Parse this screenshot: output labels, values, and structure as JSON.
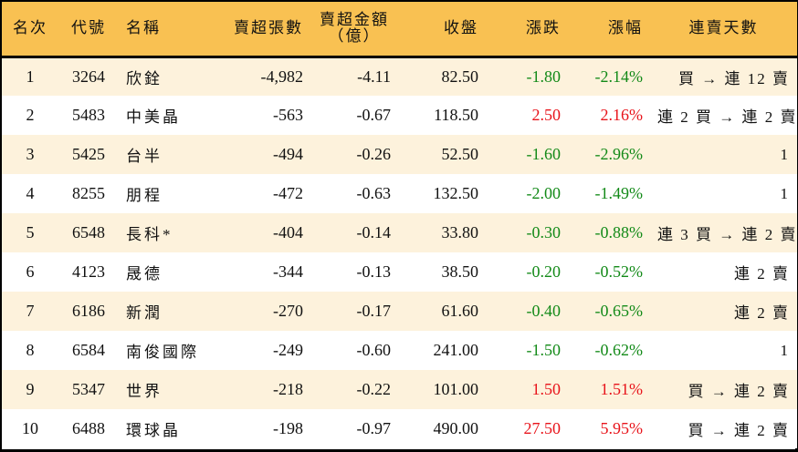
{
  "table": {
    "headers": {
      "rank": "名次",
      "code": "代號",
      "name": "名稱",
      "sell_volume": "賣超張數",
      "sell_amount_line1": "賣超金額",
      "sell_amount_line2": "（億）",
      "close": "收盤",
      "change": "漲跌",
      "change_pct": "漲幅",
      "streak": "連賣天數"
    },
    "colors": {
      "header_bg": "#F9C152",
      "row_odd_bg": "#FDF2DC",
      "row_even_bg": "#FFFFFF",
      "up": "#E8141B",
      "down": "#138A18"
    },
    "rows": [
      {
        "rank": "1",
        "code": "3264",
        "name": "欣銓",
        "sell_volume": "-4,982",
        "sell_amount": "-4.11",
        "close": "82.50",
        "change": "-1.80",
        "change_pct": "-2.14%",
        "direction": "down",
        "streak": "買 → 連 12 賣"
      },
      {
        "rank": "2",
        "code": "5483",
        "name": "中美晶",
        "sell_volume": "-563",
        "sell_amount": "-0.67",
        "close": "118.50",
        "change": "2.50",
        "change_pct": "2.16%",
        "direction": "up",
        "streak": "連 2 買 → 連 2 賣"
      },
      {
        "rank": "3",
        "code": "5425",
        "name": "台半",
        "sell_volume": "-494",
        "sell_amount": "-0.26",
        "close": "52.50",
        "change": "-1.60",
        "change_pct": "-2.96%",
        "direction": "down",
        "streak": "1"
      },
      {
        "rank": "4",
        "code": "8255",
        "name": "朋程",
        "sell_volume": "-472",
        "sell_amount": "-0.63",
        "close": "132.50",
        "change": "-2.00",
        "change_pct": "-1.49%",
        "direction": "down",
        "streak": "1"
      },
      {
        "rank": "5",
        "code": "6548",
        "name": "長科*",
        "sell_volume": "-404",
        "sell_amount": "-0.14",
        "close": "33.80",
        "change": "-0.30",
        "change_pct": "-0.88%",
        "direction": "down",
        "streak": "連 3 買 → 連 2 賣"
      },
      {
        "rank": "6",
        "code": "4123",
        "name": "晟德",
        "sell_volume": "-344",
        "sell_amount": "-0.13",
        "close": "38.50",
        "change": "-0.20",
        "change_pct": "-0.52%",
        "direction": "down",
        "streak": "連 2 賣"
      },
      {
        "rank": "7",
        "code": "6186",
        "name": "新潤",
        "sell_volume": "-270",
        "sell_amount": "-0.17",
        "close": "61.60",
        "change": "-0.40",
        "change_pct": "-0.65%",
        "direction": "down",
        "streak": "連 2 賣"
      },
      {
        "rank": "8",
        "code": "6584",
        "name": "南俊國際",
        "sell_volume": "-249",
        "sell_amount": "-0.60",
        "close": "241.00",
        "change": "-1.50",
        "change_pct": "-0.62%",
        "direction": "down",
        "streak": "1"
      },
      {
        "rank": "9",
        "code": "5347",
        "name": "世界",
        "sell_volume": "-218",
        "sell_amount": "-0.22",
        "close": "101.00",
        "change": "1.50",
        "change_pct": "1.51%",
        "direction": "up",
        "streak": "買 → 連 2 賣"
      },
      {
        "rank": "10",
        "code": "6488",
        "name": "環球晶",
        "sell_volume": "-198",
        "sell_amount": "-0.97",
        "close": "490.00",
        "change": "27.50",
        "change_pct": "5.95%",
        "direction": "up",
        "streak": "買 → 連 2 賣"
      }
    ]
  }
}
